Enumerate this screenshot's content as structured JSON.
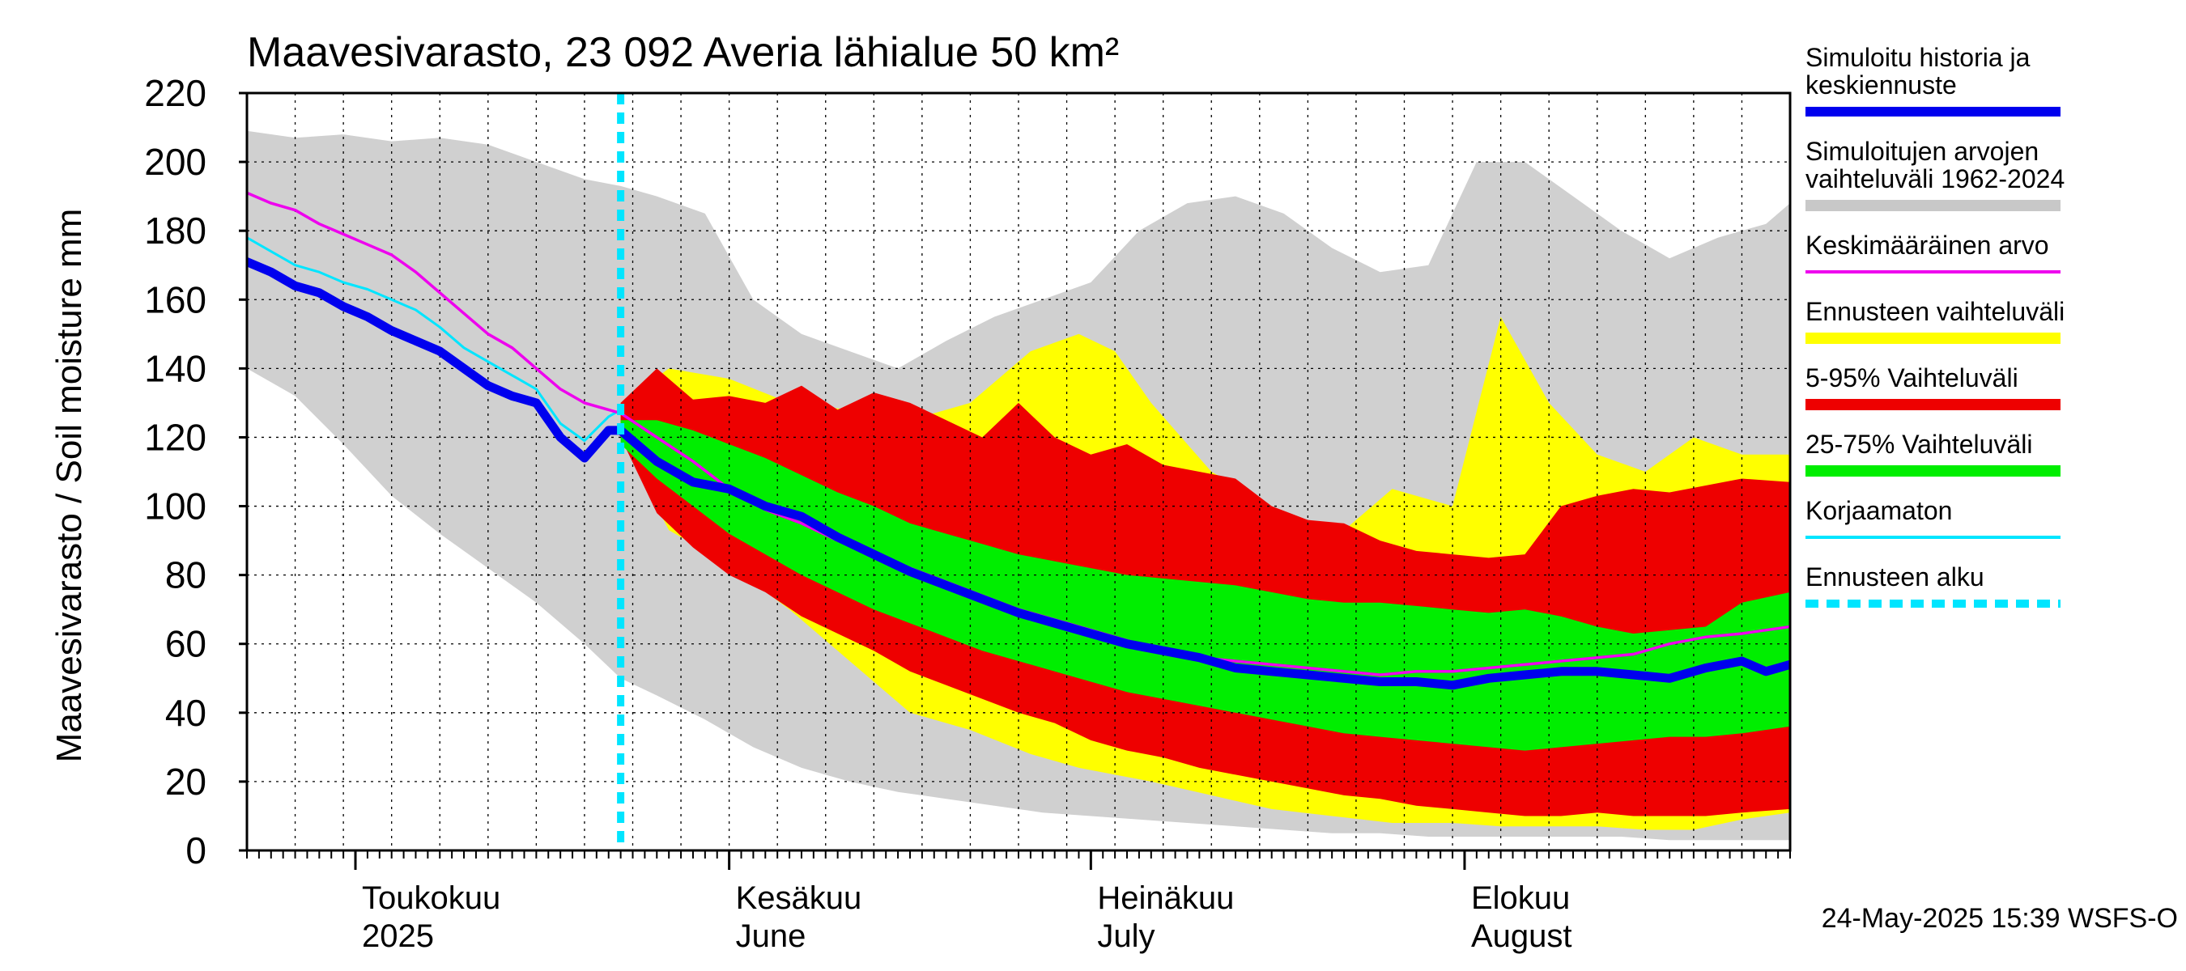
{
  "chart_data": {
    "type": "area",
    "title": "Maavesivarasto, 23 092 Averia lähialue 50 km²",
    "ylabel": "Maavesivarasto / Soil moisture   mm",
    "ylim": [
      0,
      220
    ],
    "yticks": [
      0,
      20,
      40,
      60,
      80,
      100,
      120,
      140,
      160,
      180,
      200,
      220
    ],
    "x_range_days": [
      0,
      128
    ],
    "x_axis_note": "day 0 = 2025-04-22, forecast starts day 31 (23 May)",
    "month_labels": [
      {
        "day": 9,
        "fi": "Toukokuu",
        "en": "2025"
      },
      {
        "day": 40,
        "fi": "Kesäkuu",
        "en": "June"
      },
      {
        "day": 70,
        "fi": "Heinäkuu",
        "en": "July"
      },
      {
        "day": 101,
        "fi": "Elokuu",
        "en": "August"
      }
    ],
    "month_ticks_days": [
      9,
      40,
      70,
      101
    ],
    "forecast_start_day": 31,
    "footer": "24-May-2025 15:39 WSFS-O",
    "legend": [
      {
        "label": "Simuloitu historia ja keskiennuste",
        "line1": "Simuloitu historia ja",
        "line2": "keskiennuste",
        "color": "#0000ee",
        "style": "thick"
      },
      {
        "label": "Simuloitujen arvojen vaihteluväli 1962-2024",
        "line1": "Simuloitujen arvojen",
        "line2": "vaihteluväli 1962-2024",
        "color": "#c8c8c8",
        "style": "band"
      },
      {
        "label": "Keskimääräinen arvo",
        "line1": "Keskimääräinen arvo",
        "line2": "",
        "color": "#ee00ee",
        "style": "thin"
      },
      {
        "label": "Ennusteen vaihteluväli",
        "line1": "Ennusteen vaihteluväli",
        "line2": "",
        "color": "#ffff00",
        "style": "band"
      },
      {
        "label": "5-95% Vaihteluväli",
        "line1": "5-95% Vaihteluväli",
        "line2": "",
        "color": "#ee0000",
        "style": "band"
      },
      {
        "label": "25-75% Vaihteluväli",
        "line1": "25-75% Vaihteluväli",
        "line2": "",
        "color": "#00ee00",
        "style": "band"
      },
      {
        "label": "Korjaamaton",
        "line1": "Korjaamaton",
        "line2": "",
        "color": "#00e5ff",
        "style": "thin"
      },
      {
        "label": "Ennusteen alku",
        "line1": "Ennusteen alku",
        "line2": "",
        "color": "#00e5ff",
        "style": "dashed"
      }
    ],
    "series": {
      "hist_range": {
        "x": [
          0,
          4,
          8,
          12,
          16,
          20,
          24,
          28,
          31,
          34,
          38,
          42,
          46,
          50,
          54,
          58,
          62,
          66,
          70,
          74,
          78,
          82,
          86,
          90,
          94,
          98,
          102,
          106,
          110,
          114,
          118,
          122,
          126,
          128
        ],
        "upper": [
          209,
          207,
          208,
          206,
          207,
          205,
          200,
          195,
          193,
          190,
          185,
          160,
          150,
          145,
          140,
          148,
          155,
          160,
          165,
          180,
          188,
          190,
          185,
          175,
          168,
          170,
          200,
          200,
          190,
          180,
          172,
          178,
          182,
          188
        ],
        "lower": [
          140,
          132,
          118,
          103,
          92,
          82,
          72,
          60,
          50,
          45,
          38,
          30,
          24,
          20,
          17,
          15,
          13,
          11,
          10,
          9,
          8,
          7,
          6,
          5,
          5,
          4,
          4,
          4,
          4,
          4,
          3,
          3,
          3,
          3
        ]
      },
      "forecast_range": {
        "x": [
          31,
          35,
          40,
          45,
          50,
          55,
          60,
          65,
          69,
          72,
          75,
          80,
          85,
          90,
          95,
          100,
          104,
          108,
          112,
          116,
          120,
          124,
          128
        ],
        "upper": [
          130,
          140,
          137,
          130,
          128,
          125,
          130,
          145,
          150,
          145,
          130,
          110,
          100,
          90,
          105,
          100,
          155,
          130,
          115,
          110,
          120,
          115,
          115
        ],
        "lower": [
          120,
          93,
          83,
          70,
          55,
          40,
          35,
          28,
          24,
          22,
          20,
          16,
          12,
          10,
          8,
          8,
          7,
          7,
          7,
          6,
          6,
          9,
          11
        ]
      },
      "p5_95": {
        "x": [
          31,
          34,
          37,
          40,
          43,
          46,
          49,
          52,
          55,
          58,
          61,
          64,
          67,
          70,
          73,
          76,
          79,
          82,
          85,
          88,
          91,
          94,
          97,
          100,
          103,
          106,
          109,
          112,
          115,
          118,
          121,
          124,
          128
        ],
        "upper": [
          130,
          140,
          131,
          132,
          130,
          135,
          128,
          133,
          130,
          125,
          120,
          130,
          120,
          115,
          118,
          112,
          110,
          108,
          100,
          96,
          95,
          90,
          87,
          86,
          85,
          86,
          100,
          103,
          105,
          104,
          106,
          108,
          107
        ],
        "lower": [
          120,
          98,
          88,
          80,
          75,
          68,
          63,
          58,
          52,
          48,
          44,
          40,
          37,
          32,
          29,
          27,
          24,
          22,
          20,
          18,
          16,
          15,
          13,
          12,
          11,
          10,
          10,
          11,
          10,
          10,
          10,
          11,
          12
        ]
      },
      "p25_75": {
        "x": [
          31,
          34,
          37,
          40,
          43,
          46,
          49,
          52,
          55,
          58,
          61,
          64,
          67,
          70,
          73,
          76,
          79,
          82,
          85,
          88,
          91,
          94,
          97,
          100,
          103,
          106,
          109,
          112,
          115,
          118,
          121,
          124,
          128
        ],
        "upper": [
          125,
          125,
          122,
          118,
          114,
          109,
          104,
          100,
          95,
          92,
          89,
          86,
          84,
          82,
          80,
          79,
          78,
          77,
          75,
          73,
          72,
          72,
          71,
          70,
          69,
          70,
          68,
          65,
          63,
          64,
          65,
          72,
          75
        ],
        "lower": [
          118,
          108,
          100,
          92,
          86,
          80,
          75,
          70,
          66,
          62,
          58,
          55,
          52,
          49,
          46,
          44,
          42,
          40,
          38,
          36,
          34,
          33,
          32,
          31,
          30,
          29,
          30,
          31,
          32,
          33,
          33,
          34,
          36
        ]
      },
      "mean_sim": {
        "x": [
          0,
          2,
          4,
          6,
          8,
          10,
          12,
          14,
          16,
          18,
          20,
          22,
          24,
          26,
          28,
          30,
          31,
          34,
          37,
          40,
          43,
          46,
          49,
          52,
          55,
          58,
          61,
          64,
          67,
          70,
          73,
          76,
          79,
          82,
          85,
          88,
          91,
          94,
          97,
          100,
          103,
          106,
          109,
          112,
          115,
          118,
          121,
          124,
          126,
          128
        ],
        "y": [
          171,
          168,
          164,
          162,
          158,
          155,
          151,
          148,
          145,
          140,
          135,
          132,
          130,
          120,
          114,
          122,
          122,
          113,
          107,
          105,
          100,
          97,
          91,
          86,
          81,
          77,
          73,
          69,
          66,
          63,
          60,
          58,
          56,
          53,
          52,
          51,
          50,
          49,
          49,
          48,
          50,
          51,
          52,
          52,
          51,
          50,
          53,
          55,
          52,
          54
        ]
      },
      "average": {
        "x": [
          0,
          2,
          4,
          6,
          8,
          10,
          12,
          14,
          16,
          18,
          20,
          22,
          24,
          26,
          28,
          30,
          31,
          34,
          37,
          40,
          43,
          46,
          49,
          52,
          55,
          58,
          61,
          64,
          67,
          70,
          73,
          76,
          79,
          82,
          85,
          88,
          91,
          94,
          97,
          100,
          103,
          106,
          109,
          112,
          115,
          118,
          121,
          124,
          126,
          128
        ],
        "y": [
          191,
          188,
          186,
          182,
          179,
          176,
          173,
          168,
          162,
          156,
          150,
          146,
          140,
          134,
          130,
          128,
          127,
          120,
          113,
          105,
          99,
          95,
          90,
          86,
          82,
          78,
          74,
          70,
          67,
          64,
          61,
          58,
          56,
          55,
          54,
          53,
          52,
          51,
          52,
          52,
          53,
          54,
          55,
          56,
          57,
          60,
          62,
          63,
          64,
          65
        ]
      },
      "uncorrected": {
        "x": [
          0,
          2,
          4,
          6,
          8,
          10,
          12,
          14,
          16,
          18,
          20,
          22,
          24,
          26,
          28,
          30,
          31
        ],
        "y": [
          178,
          174,
          170,
          168,
          165,
          163,
          160,
          157,
          152,
          146,
          142,
          138,
          134,
          124,
          119,
          126,
          128
        ]
      }
    }
  }
}
